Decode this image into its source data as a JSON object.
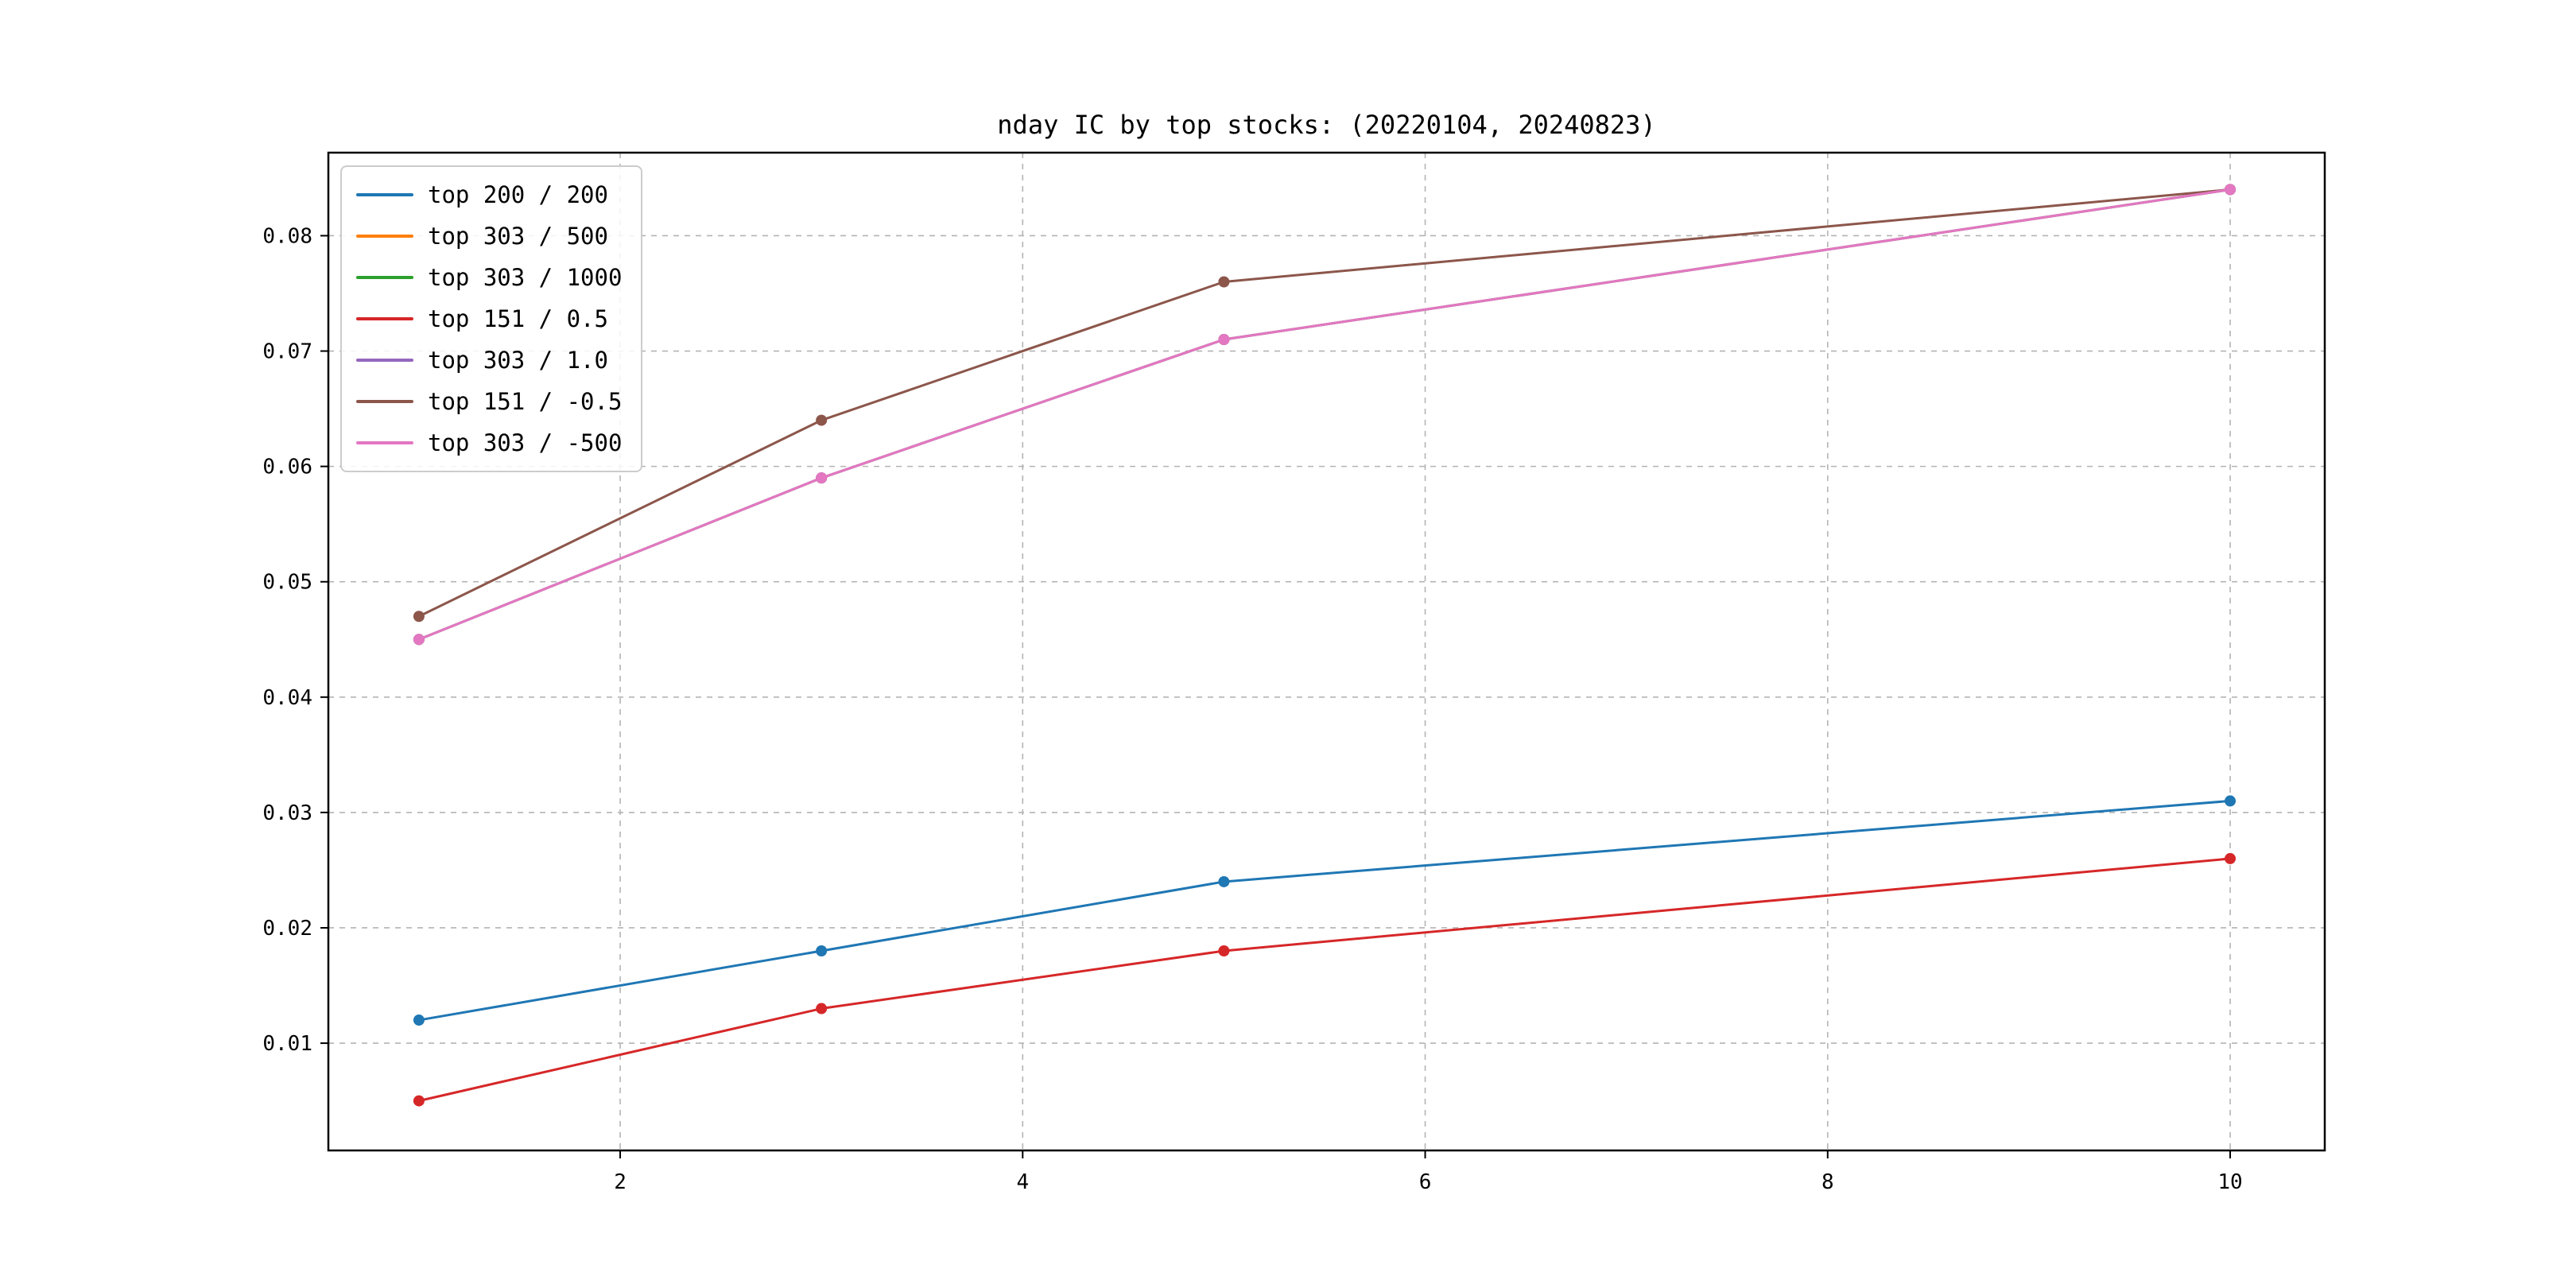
{
  "chart_data": {
    "type": "line",
    "title": "nday IC by top stocks: (20220104, 20240823)",
    "xlabel": "",
    "ylabel": "",
    "x": [
      1,
      3,
      5,
      10
    ],
    "series": [
      {
        "name": "top 200 / 200",
        "color": "#1f77b4",
        "values": [
          0.012,
          0.018,
          0.024,
          0.031
        ]
      },
      {
        "name": "top 303 / 500",
        "color": "#ff7f0e",
        "values": [
          0.045,
          0.059,
          0.071,
          0.084
        ]
      },
      {
        "name": "top 303 / 1000",
        "color": "#2ca02c",
        "values": [
          0.045,
          0.059,
          0.071,
          0.084
        ]
      },
      {
        "name": "top 151 / 0.5",
        "color": "#d62728",
        "values": [
          0.005,
          0.013,
          0.018,
          0.026
        ]
      },
      {
        "name": "top 303 / 1.0",
        "color": "#9467bd",
        "values": [
          0.045,
          0.059,
          0.071,
          0.084
        ]
      },
      {
        "name": "top 151 / -0.5",
        "color": "#8c564b",
        "values": [
          0.047,
          0.064,
          0.076,
          0.084
        ]
      },
      {
        "name": "top 303 / -500",
        "color": "#e377c2",
        "values": [
          0.045,
          0.059,
          0.071,
          0.084
        ]
      }
    ],
    "xticks": [
      2,
      4,
      6,
      8,
      10
    ],
    "xtick_labels": [
      "2",
      "4",
      "6",
      "8",
      "10"
    ],
    "yticks": [
      0.01,
      0.02,
      0.03,
      0.04,
      0.05,
      0.06,
      0.07,
      0.08
    ],
    "ytick_labels": [
      "0.01",
      "0.02",
      "0.03",
      "0.04",
      "0.05",
      "0.06",
      "0.07",
      "0.08"
    ],
    "xlim": [
      0.55,
      10.47
    ],
    "ylim": [
      0.0007,
      0.0872
    ],
    "grid": true,
    "grid_style": {
      "color": "#b4b4b4",
      "dash": "7 7",
      "width": 1.6
    },
    "axes_color": "#000000",
    "legend_position": "upper left"
  }
}
